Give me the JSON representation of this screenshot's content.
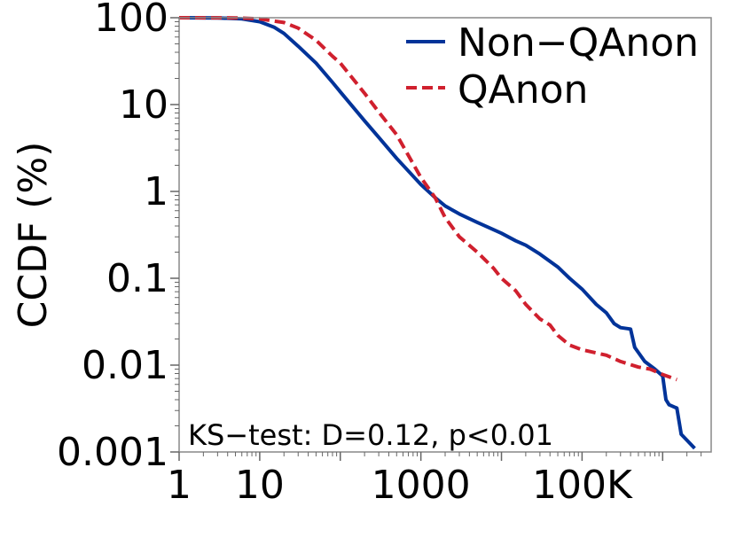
{
  "chart_data": {
    "type": "line",
    "title": "",
    "xlabel": "",
    "ylabel": "CCDF (%)",
    "xscale": "log",
    "yscale": "log",
    "xlim": [
      1,
      4000000
    ],
    "ylim": [
      0.001,
      100
    ],
    "x_ticks": [
      {
        "value": 1,
        "label": "1"
      },
      {
        "value": 10,
        "label": "10"
      },
      {
        "value": 1000,
        "label": "1000"
      },
      {
        "value": 100000,
        "label": "100K"
      }
    ],
    "y_ticks": [
      {
        "value": 100,
        "label": "100"
      },
      {
        "value": 10,
        "label": "10"
      },
      {
        "value": 1,
        "label": "1"
      },
      {
        "value": 0.1,
        "label": "0.1"
      },
      {
        "value": 0.01,
        "label": "0.01"
      },
      {
        "value": 0.001,
        "label": "0.001"
      }
    ],
    "grid": false,
    "legend_position": "top-right",
    "annotation": "KS−test: D=0.12, p<0.01",
    "series": [
      {
        "name": "Non−QAnon",
        "color": "#003399",
        "style": "solid",
        "points": [
          [
            1,
            100
          ],
          [
            3,
            99.5
          ],
          [
            6,
            97
          ],
          [
            10,
            90
          ],
          [
            15,
            78
          ],
          [
            20,
            66
          ],
          [
            30,
            47
          ],
          [
            50,
            30
          ],
          [
            80,
            18
          ],
          [
            100,
            14
          ],
          [
            200,
            6.5
          ],
          [
            300,
            4.2
          ],
          [
            500,
            2.4
          ],
          [
            1000,
            1.2
          ],
          [
            1500,
            0.85
          ],
          [
            2000,
            0.68
          ],
          [
            3000,
            0.55
          ],
          [
            5000,
            0.44
          ],
          [
            10000,
            0.33
          ],
          [
            15000,
            0.27
          ],
          [
            20000,
            0.24
          ],
          [
            30000,
            0.19
          ],
          [
            50000,
            0.135
          ],
          [
            70000,
            0.1
          ],
          [
            100000,
            0.075
          ],
          [
            150000,
            0.05
          ],
          [
            200000,
            0.04
          ],
          [
            250000,
            0.03
          ],
          [
            300000,
            0.027
          ],
          [
            400000,
            0.026
          ],
          [
            450000,
            0.016
          ],
          [
            600000,
            0.011
          ],
          [
            800000,
            0.009
          ],
          [
            1000000,
            0.0075
          ],
          [
            1100000,
            0.004
          ],
          [
            1200000,
            0.0035
          ],
          [
            1500000,
            0.0032
          ],
          [
            1700000,
            0.0016
          ],
          [
            2500000,
            0.0011
          ]
        ]
      },
      {
        "name": "QAnon",
        "color": "#d0202e",
        "style": "dashed",
        "points": [
          [
            1,
            100
          ],
          [
            5,
            99.5
          ],
          [
            10,
            97
          ],
          [
            20,
            88
          ],
          [
            30,
            76
          ],
          [
            50,
            55
          ],
          [
            80,
            36
          ],
          [
            100,
            30
          ],
          [
            200,
            13.5
          ],
          [
            300,
            8.2
          ],
          [
            500,
            4.5
          ],
          [
            1000,
            1.45
          ],
          [
            1500,
            0.85
          ],
          [
            2000,
            0.5
          ],
          [
            3000,
            0.3
          ],
          [
            5000,
            0.2
          ],
          [
            8000,
            0.13
          ],
          [
            10000,
            0.1
          ],
          [
            15000,
            0.072
          ],
          [
            20000,
            0.05
          ],
          [
            30000,
            0.034
          ],
          [
            40000,
            0.029
          ],
          [
            50000,
            0.022
          ],
          [
            70000,
            0.017
          ],
          [
            100000,
            0.015
          ],
          [
            200000,
            0.013
          ],
          [
            300000,
            0.011
          ],
          [
            500000,
            0.0095
          ],
          [
            700000,
            0.009
          ],
          [
            1000000,
            0.0078
          ],
          [
            1500000,
            0.0068
          ]
        ]
      }
    ]
  }
}
